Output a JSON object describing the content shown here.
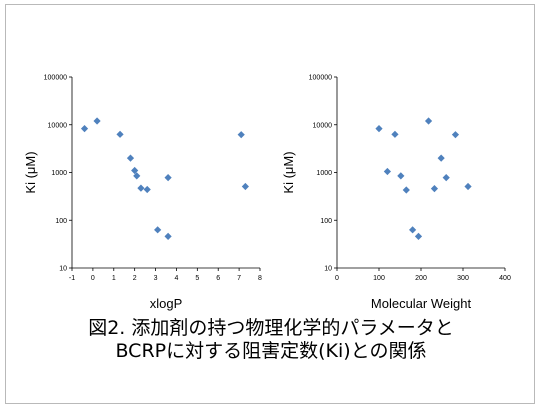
{
  "caption": {
    "line1": "図2. 添加剤の持つ物理化学的パラメータと",
    "line2": "BCRPに対する阻害定数(Ki)との関係"
  },
  "colors": {
    "marker": "#4f81bd",
    "frame": "#b9b9b9",
    "axis": "#000000"
  },
  "chart_data": [
    {
      "type": "scatter",
      "xlabel": "xlogP",
      "ylabel": "Ki (μM)",
      "yscale": "log",
      "ylim": [
        10,
        100000
      ],
      "xlim": [
        -1,
        8
      ],
      "xticks": [
        -1,
        0,
        1,
        2,
        3,
        4,
        5,
        6,
        7,
        8
      ],
      "yticks": [
        10,
        100,
        1000,
        10000,
        100000
      ],
      "grid": false,
      "legend": "none",
      "points": [
        {
          "x": -0.4,
          "y": 8300
        },
        {
          "x": 0.2,
          "y": 12000
        },
        {
          "x": 1.3,
          "y": 6300
        },
        {
          "x": 1.8,
          "y": 2000
        },
        {
          "x": 2.0,
          "y": 1100
        },
        {
          "x": 2.1,
          "y": 850
        },
        {
          "x": 2.3,
          "y": 470
        },
        {
          "x": 2.6,
          "y": 440
        },
        {
          "x": 3.1,
          "y": 63
        },
        {
          "x": 3.6,
          "y": 46
        },
        {
          "x": 3.6,
          "y": 780
        },
        {
          "x": 7.1,
          "y": 6200
        },
        {
          "x": 7.3,
          "y": 510
        }
      ]
    },
    {
      "type": "scatter",
      "xlabel": "Molecular Weight",
      "ylabel": "Ki (μM)",
      "yscale": "log",
      "ylim": [
        10,
        100000
      ],
      "xlim": [
        0,
        400
      ],
      "xticks": [
        0,
        100,
        200,
        300,
        400
      ],
      "yticks": [
        10,
        100,
        1000,
        10000,
        100000
      ],
      "grid": false,
      "legend": "none",
      "points": [
        {
          "x": 100,
          "y": 8300
        },
        {
          "x": 120,
          "y": 1050
        },
        {
          "x": 138,
          "y": 6300
        },
        {
          "x": 152,
          "y": 850
        },
        {
          "x": 165,
          "y": 430
        },
        {
          "x": 180,
          "y": 63
        },
        {
          "x": 194,
          "y": 46
        },
        {
          "x": 218,
          "y": 12000
        },
        {
          "x": 232,
          "y": 460
        },
        {
          "x": 248,
          "y": 2000
        },
        {
          "x": 260,
          "y": 780
        },
        {
          "x": 282,
          "y": 6200
        },
        {
          "x": 312,
          "y": 510
        }
      ]
    }
  ]
}
